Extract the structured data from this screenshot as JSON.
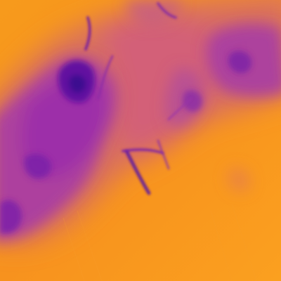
{
  "image": {
    "kind": "false-color thermal map",
    "palette": {
      "warm": "#f7951c",
      "warm_light": "#fba21e",
      "mid": "#d3577a",
      "cool": "#9c2fa8",
      "cold": "#5a10a0",
      "coldest": "#3a0890"
    }
  }
}
